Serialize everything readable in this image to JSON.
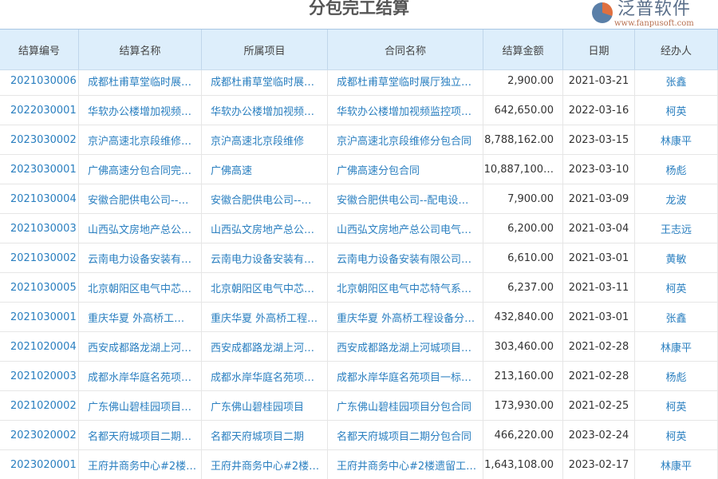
{
  "title": "分包完工结算",
  "columns": [
    "结算编号",
    "结算名称",
    "所属项目",
    "合同名称",
    "结算金额",
    "日期",
    "经办人"
  ],
  "rows": [
    [
      "2021030006",
      "成都杜甫草堂临时展…",
      "成都杜甫草堂临时展…",
      "成都杜甫草堂临时展厅独立…",
      "2,900.00",
      "2021-03-21",
      "张鑫"
    ],
    [
      "2022030001",
      "华软办公楼增加视频…",
      "华软办公楼增加视频…",
      "华软办公楼增加视频监控项…",
      "642,650.00",
      "2022-03-16",
      "柯英"
    ],
    [
      "2023030002",
      "京沪高速北京段维修…",
      "京沪高速北京段维修",
      "京沪高速北京段维修分包合同",
      "8,788,162.00",
      "2023-03-15",
      "林康平"
    ],
    [
      "2023030001",
      "广佛高速分包合同完…",
      "广佛高速",
      "广佛高速分包合同",
      "10,887,100…",
      "2023-03-10",
      "杨彪"
    ],
    [
      "2021030004",
      "安徽合肥供电公司--…",
      "安徽合肥供电公司--…",
      "安徽合肥供电公司--配电设…",
      "7,900.00",
      "2021-03-09",
      "龙波"
    ],
    [
      "2021030003",
      "山西弘文房地产总公…",
      "山西弘文房地产总公…",
      "山西弘文房地产总公司电气…",
      "6,200.00",
      "2021-03-04",
      "王志远"
    ],
    [
      "2021030002",
      "云南电力设备安装有…",
      "云南电力设备安装有…",
      "云南电力设备安装有限公司…",
      "6,610.00",
      "2021-03-01",
      "黄敏"
    ],
    [
      "2021030005",
      "北京朝阳区电气中芯…",
      "北京朝阳区电气中芯…",
      "北京朝阳区电气中芯特气系…",
      "6,237.00",
      "2021-03-11",
      "柯英"
    ],
    [
      "2021030001",
      "重庆华夏 外高桥工…",
      "重庆华夏 外高桥工程…",
      "重庆华夏 外高桥工程设备分…",
      "432,840.00",
      "2021-03-01",
      "张鑫"
    ],
    [
      "2021020004",
      "西安成都路龙湖上河…",
      "西安成都路龙湖上河…",
      "西安成都路龙湖上河城项目…",
      "303,460.00",
      "2021-02-28",
      "林康平"
    ],
    [
      "2021020003",
      "成都水岸华庭名苑项…",
      "成都水岸华庭名苑项…",
      "成都水岸华庭名苑项目一标…",
      "213,160.00",
      "2021-02-28",
      "杨彪"
    ],
    [
      "2021020002",
      "广东佛山碧桂园项目…",
      "广东佛山碧桂园项目",
      "广东佛山碧桂园项目分包合同",
      "173,930.00",
      "2021-02-25",
      "柯英"
    ],
    [
      "2023020002",
      "名都天府城项目二期…",
      "名都天府城项目二期",
      "名都天府城项目二期分包合同",
      "466,220.00",
      "2023-02-24",
      "柯英"
    ],
    [
      "2023020001",
      "王府井商务中心#2楼…",
      "王府井商务中心#2楼…",
      "王府井商务中心#2楼遗留工…",
      "1,643,108.00",
      "2023-02-17",
      "林康平"
    ]
  ],
  "logo": {
    "name": "泛普软件",
    "url": "www.fanpusoft.com"
  },
  "colors": {
    "header_bg": "#ddeefb",
    "link": "#2a7fc0"
  }
}
